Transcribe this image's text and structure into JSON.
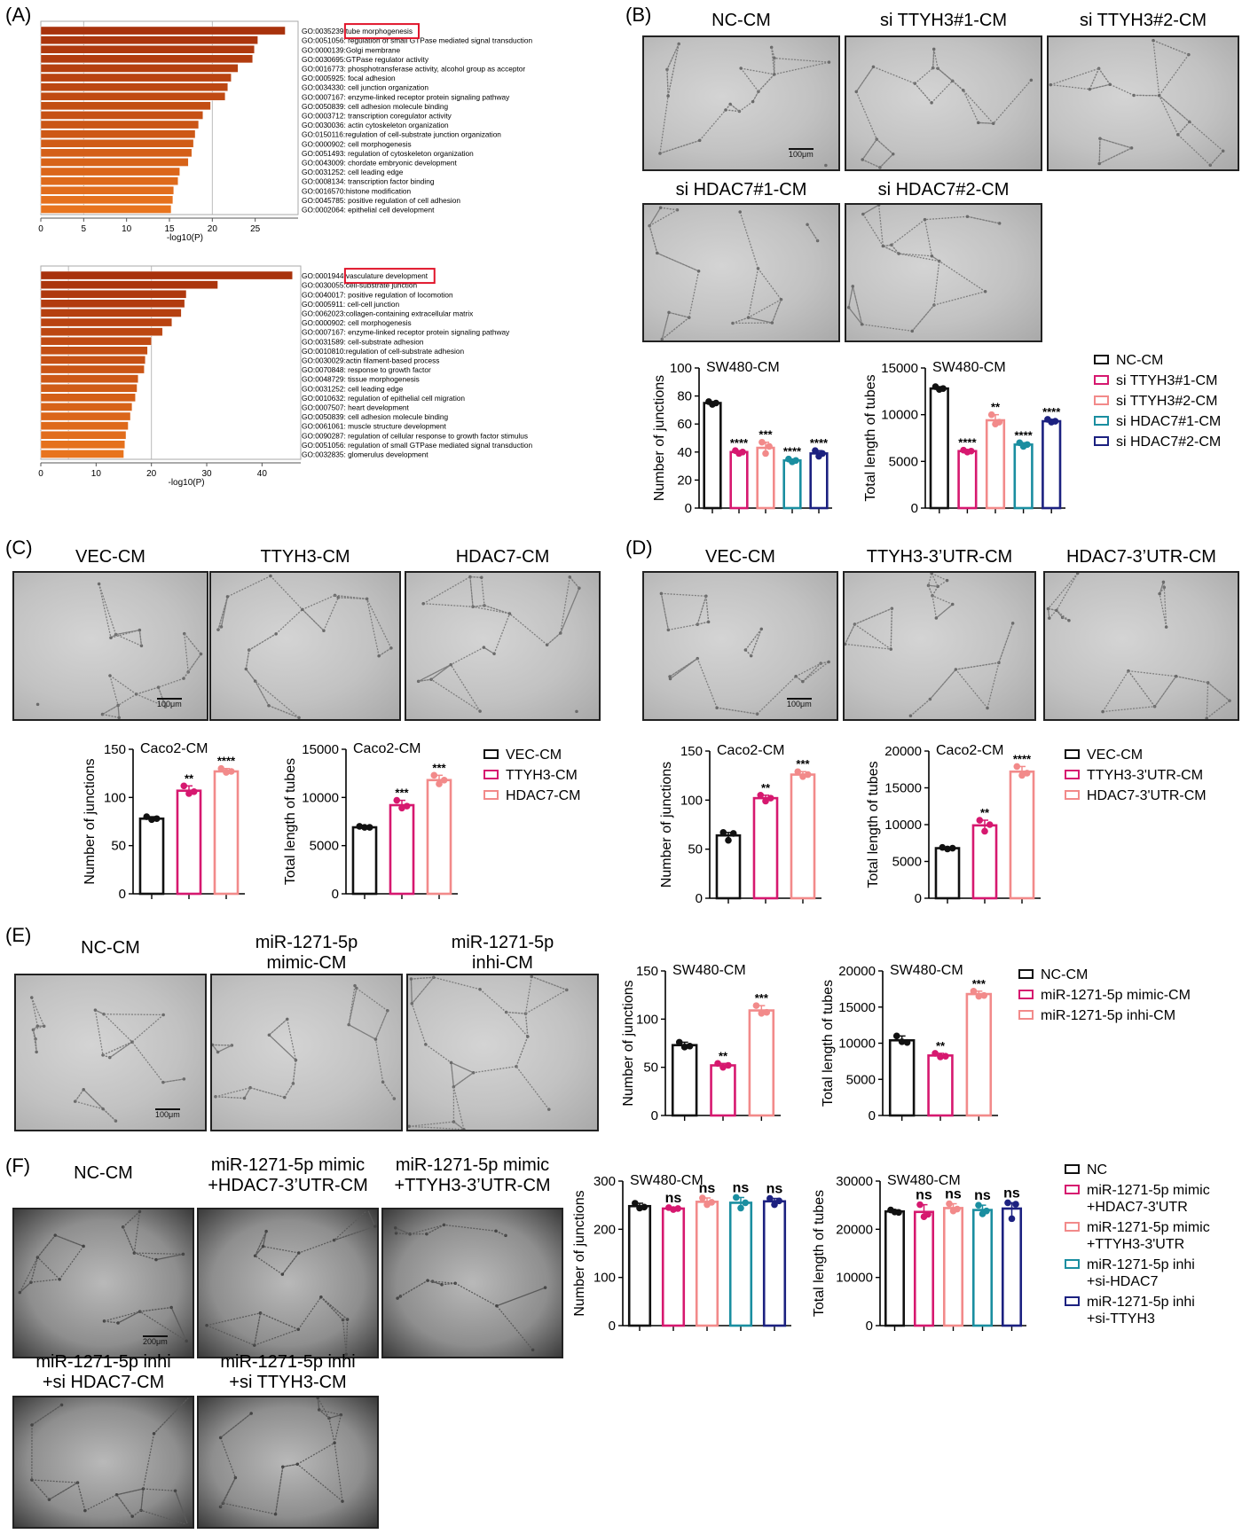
{
  "panels": [
    {
      "id": "A",
      "label": "(A)"
    },
    {
      "id": "B",
      "label": "(B)"
    },
    {
      "id": "C",
      "label": "(C)"
    },
    {
      "id": "D",
      "label": "(D)"
    },
    {
      "id": "E",
      "label": "(E)"
    },
    {
      "id": "F",
      "label": "(F)"
    }
  ],
  "colors": {
    "black": "#111111",
    "magenta": "#d6186f",
    "pink": "#f28a8a",
    "teal": "#1a8ea0",
    "navy": "#1c2180",
    "go_dark": "#a8320c",
    "go_light": "#e8741e"
  },
  "micrographs": {
    "B": [
      {
        "title": "NC-CM",
        "scale": "100μm"
      },
      {
        "title": "si TTYH3#1-CM"
      },
      {
        "title": "si TTYH3#2-CM"
      },
      {
        "title": "si HDAC7#1-CM"
      },
      {
        "title": "si HDAC7#2-CM"
      }
    ],
    "C": [
      {
        "title": "VEC-CM",
        "scale": "100μm"
      },
      {
        "title": "TTYH3-CM"
      },
      {
        "title": "HDAC7-CM"
      }
    ],
    "D": [
      {
        "title": "VEC-CM",
        "scale": "100μm"
      },
      {
        "title": "TTYH3-3’UTR-CM"
      },
      {
        "title": "HDAC7-3’UTR-CM"
      }
    ],
    "E": [
      {
        "title": "NC-CM",
        "scale": "100μm"
      },
      {
        "title": "miR-1271-5p\nmimic-CM"
      },
      {
        "title": "miR-1271-5p\ninhi-CM"
      }
    ],
    "F": [
      {
        "title": "NC-CM",
        "scale": "200μm"
      },
      {
        "title": "miR-1271-5p mimic\n+HDAC7-3’UTR-CM"
      },
      {
        "title": "miR-1271-5p mimic\n+TTYH3-3’UTR-CM"
      },
      {
        "title": "miR-1271-5p inhi\n+si HDAC7-CM"
      },
      {
        "title": "miR-1271-5p inhi\n+si TTYH3-CM"
      }
    ]
  },
  "legends": {
    "B": [
      "NC-CM",
      "si TTYH3#1-CM",
      "si TTYH3#2-CM",
      "si HDAC7#1-CM",
      "si HDAC7#2-CM"
    ],
    "C": [
      "VEC-CM",
      "TTYH3-CM",
      "HDAC7-CM"
    ],
    "D": [
      "VEC-CM",
      "TTYH3-3'UTR-CM",
      "HDAC7-3'UTR-CM"
    ],
    "E": [
      "NC-CM",
      "miR-1271-5p mimic-CM",
      "miR-1271-5p inhi-CM"
    ],
    "F": [
      "NC",
      "miR-1271-5p mimic\n+HDAC7-3'UTR",
      "miR-1271-5p mimic\n+TTYH3-3'UTR",
      "miR-1271-5p inhi\n+si-HDAC7",
      "miR-1271-5p inhi\n+si-TTYH3"
    ]
  },
  "chart_data": [
    {
      "id": "A1",
      "type": "bar",
      "orientation": "horizontal",
      "xlabel": "-log10(P)",
      "xlim": [
        0,
        30
      ],
      "xticks": [
        0,
        5,
        10,
        15,
        20,
        25
      ],
      "gridlines": [
        5,
        20
      ],
      "highlight": "tube morphogenesis",
      "categories": [
        "GO:0035239 tube morphogenesis",
        "GO:0051056: regulation of small GTPase mediated signal transduction",
        "GO:0000139:Golgi membrane",
        "GO:0030695:GTPase regulator activity",
        "GO:0016773: phosphotransferase activity, alcohol group as acceptor",
        "GO:0005925: focal adhesion",
        "GO:0034330: cell junction organization",
        "GO:0007167: enzyme-linked receptor protein signaling pathway",
        "GO:0050839: cell adhesion molecule binding",
        "GO:0003712: transcription coregulator activity",
        "GO:0030036: actin cytoskeleton organization",
        "GO:0150116:regulation of cell-substrate junction organization",
        "GO:0000902: cell morphogenesis",
        "GO:0051493: regulation of cytoskeleton organization",
        "GO:0043009: chordate embryonic development",
        "GO:0031252: cell leading edge",
        "GO:0008134: transcription factor binding",
        "GO:0016570:histone modification",
        "GO:0045785: positive regulation of cell adhesion",
        "GO:0002064: epithelial cell development"
      ],
      "values": [
        28.5,
        25.3,
        24.9,
        24.7,
        23.0,
        22.2,
        21.8,
        21.5,
        19.8,
        18.9,
        18.4,
        18.0,
        17.8,
        17.6,
        17.2,
        16.2,
        16.0,
        15.5,
        15.4,
        15.2
      ]
    },
    {
      "id": "A2",
      "type": "bar",
      "orientation": "horizontal",
      "xlabel": "-log10(P)",
      "xlim": [
        0,
        47
      ],
      "xticks": [
        0,
        10,
        20,
        30,
        40
      ],
      "gridlines": [
        5,
        20
      ],
      "highlight": "vasculature development",
      "categories": [
        "GO:0001944 vasculature development",
        "GO:0030055:cell-substrate junction",
        "GO:0040017: positive regulation of locomotion",
        "GO:0005911: cell-cell junction",
        "GO:0062023:collagen-containing extracellular matrix",
        "GO:0000902: cell morphogenesis",
        "GO:0007167: enzyme-linked receptor protein signaling pathway",
        "GO:0031589: cell-substrate adhesion",
        "GO:0010810:regulation of cell-substrate adhesion",
        "GO:0030029:actin filament-based process",
        "GO:0070848: response to growth factor",
        "GO:0048729: tissue morphogenesis",
        "GO:0031252: cell leading edge",
        "GO:0010632: regulation of epithelial cell migration",
        "GO:0007507: heart development",
        "GO:0050839: cell adhesion molecule binding",
        "GO:0061061: muscle structure development",
        "GO:0090287: regulation of cellular response to growth factor stimulus",
        "GO:0051056: regulation of small GTPase mediated signal transduction",
        "GO:0032835: glomerulus development"
      ],
      "values": [
        45.5,
        32.0,
        26.3,
        26.0,
        25.4,
        23.7,
        22.0,
        20.0,
        19.3,
        18.9,
        18.7,
        17.6,
        17.4,
        17.1,
        16.5,
        16.2,
        15.8,
        15.4,
        15.2,
        15.0
      ]
    },
    {
      "id": "B1",
      "type": "bar",
      "title": "SW480-CM",
      "ylabel": "Number of junctions",
      "ylim": [
        0,
        100
      ],
      "yticks": [
        0,
        20,
        40,
        60,
        80,
        100
      ],
      "values": [
        75,
        40,
        43,
        34,
        39
      ],
      "points": [
        [
          76,
          74,
          75
        ],
        [
          41,
          39,
          40
        ],
        [
          47,
          39,
          44
        ],
        [
          35,
          33,
          34
        ],
        [
          41,
          37,
          39
        ]
      ],
      "sig": [
        "",
        "****",
        "***",
        "****",
        "****"
      ]
    },
    {
      "id": "B2",
      "type": "bar",
      "title": "SW480-CM",
      "ylabel": "Total length of tubes",
      "ylim": [
        0,
        15000
      ],
      "yticks": [
        0,
        5000,
        10000,
        15000
      ],
      "values": [
        12800,
        6100,
        9400,
        6800,
        9300
      ],
      "points": [
        [
          13000,
          12700,
          12800
        ],
        [
          6200,
          6000,
          6100
        ],
        [
          10000,
          9000,
          9200
        ],
        [
          7000,
          6600,
          6800
        ],
        [
          9500,
          9200,
          9300
        ]
      ],
      "sig": [
        "",
        "****",
        "**",
        "****",
        "****"
      ]
    },
    {
      "id": "C1",
      "type": "bar",
      "title": "Caco2-CM",
      "ylabel": "Number of junctions",
      "ylim": [
        0,
        150
      ],
      "yticks": [
        0,
        50,
        100,
        150
      ],
      "values": [
        78,
        107,
        127
      ],
      "points": [
        [
          80,
          77,
          78
        ],
        [
          112,
          104,
          106
        ],
        [
          130,
          126,
          127
        ]
      ],
      "sig": [
        "",
        "**",
        "****"
      ]
    },
    {
      "id": "C2",
      "type": "bar",
      "title": "Caco2-CM",
      "ylabel": "Total length of tubes",
      "ylim": [
        0,
        15000
      ],
      "yticks": [
        0,
        5000,
        10000,
        15000
      ],
      "values": [
        6900,
        9200,
        11800
      ],
      "points": [
        [
          7000,
          6900,
          6900
        ],
        [
          9700,
          8900,
          9100
        ],
        [
          12300,
          11400,
          11800
        ]
      ],
      "sig": [
        "",
        "***",
        "***"
      ]
    },
    {
      "id": "D1",
      "type": "bar",
      "title": "Caco2-CM",
      "ylabel": "Number of junctions",
      "ylim": [
        0,
        150
      ],
      "yticks": [
        0,
        50,
        100,
        150
      ],
      "values": [
        64,
        102,
        126
      ],
      "points": [
        [
          67,
          59,
          66
        ],
        [
          105,
          99,
          102
        ],
        [
          129,
          124,
          126
        ]
      ],
      "sig": [
        "",
        "**",
        "***"
      ]
    },
    {
      "id": "D2",
      "type": "bar",
      "title": "Caco2-CM",
      "ylabel": "Total length of tubes",
      "ylim": [
        0,
        20000
      ],
      "yticks": [
        0,
        5000,
        10000,
        15000,
        20000
      ],
      "values": [
        6800,
        9900,
        17200
      ],
      "points": [
        [
          6900,
          6700,
          6800
        ],
        [
          10600,
          9100,
          10000
        ],
        [
          17900,
          16700,
          17000
        ]
      ],
      "sig": [
        "",
        "**",
        "****"
      ]
    },
    {
      "id": "E1",
      "type": "bar",
      "title": "SW480-CM",
      "ylabel": "Number of junctions",
      "ylim": [
        0,
        150
      ],
      "yticks": [
        0,
        50,
        100,
        150
      ],
      "values": [
        73,
        52,
        109
      ],
      "points": [
        [
          76,
          71,
          72
        ],
        [
          54,
          50,
          52
        ],
        [
          114,
          106,
          107
        ]
      ],
      "sig": [
        "",
        "**",
        "***"
      ]
    },
    {
      "id": "E2",
      "type": "bar",
      "title": "SW480-CM",
      "ylabel": "Total length of tubes",
      "ylim": [
        0,
        20000
      ],
      "yticks": [
        0,
        5000,
        10000,
        15000,
        20000
      ],
      "values": [
        10400,
        8300,
        16800
      ],
      "points": [
        [
          11000,
          10200,
          10100
        ],
        [
          8600,
          8100,
          8200
        ],
        [
          17200,
          16500,
          16600
        ]
      ],
      "sig": [
        "",
        "**",
        "***"
      ]
    },
    {
      "id": "F1",
      "type": "bar",
      "title": "SW480-CM",
      "ylabel": "Number of junctions",
      "ylim": [
        0,
        300
      ],
      "yticks": [
        0,
        100,
        200,
        300
      ],
      "values": [
        248,
        243,
        257,
        255,
        258
      ],
      "points": [
        [
          254,
          244,
          246
        ],
        [
          245,
          241,
          243
        ],
        [
          265,
          251,
          256
        ],
        [
          266,
          244,
          255
        ],
        [
          264,
          251,
          259
        ]
      ],
      "sig": [
        "",
        "ns",
        "ns",
        "ns",
        "ns"
      ]
    },
    {
      "id": "F2",
      "type": "bar",
      "title": "SW480-CM",
      "ylabel": "Total length of tubes",
      "ylim": [
        0,
        30000
      ],
      "yticks": [
        0,
        10000,
        20000,
        30000
      ],
      "values": [
        23700,
        23600,
        24400,
        24000,
        24300
      ],
      "points": [
        [
          24000,
          23600,
          23500
        ],
        [
          25100,
          22600,
          23100
        ],
        [
          25300,
          23800,
          24200
        ],
        [
          25000,
          23200,
          23800
        ],
        [
          25500,
          22200,
          25200
        ]
      ],
      "sig": [
        "",
        "ns",
        "ns",
        "ns",
        "ns"
      ]
    }
  ]
}
